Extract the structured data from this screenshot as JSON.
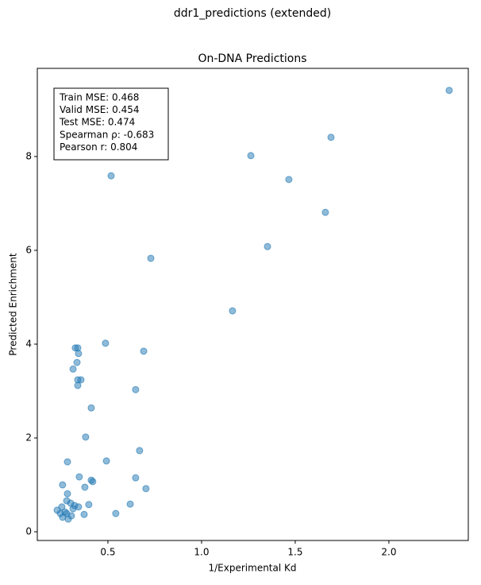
{
  "chart_data": {
    "type": "scatter",
    "suptitle": "ddr1_predictions (extended)",
    "title": "On-DNA Predictions",
    "xlabel": "1/Experimental Kd",
    "ylabel": "Predicted Enrichment",
    "annotation": [
      "Train MSE: 0.468",
      "Valid MSE: 0.454",
      "Test MSE: 0.474",
      "Spearman ρ: -0.683",
      "Pearson r: 0.804"
    ],
    "color": "#1f77b4",
    "x": [
      2.322,
      1.691,
      1.263,
      1.466,
      0.517,
      1.661,
      1.352,
      0.729,
      1.165,
      0.487,
      0.691,
      0.326,
      0.339,
      0.343,
      0.335,
      0.314,
      0.339,
      0.356,
      0.339,
      0.648,
      0.411,
      0.381,
      0.669,
      0.492,
      0.284,
      0.347,
      0.648,
      0.411,
      0.419,
      0.258,
      0.377,
      0.703,
      0.284,
      0.28,
      0.301,
      0.322,
      0.398,
      0.619,
      0.343,
      0.314,
      0.254,
      0.229,
      0.246,
      0.271,
      0.28,
      0.373,
      0.542,
      0.305,
      0.258,
      0.288
    ],
    "values": [
      9.41,
      8.41,
      8.02,
      7.51,
      7.59,
      6.81,
      6.08,
      5.83,
      4.71,
      4.02,
      3.85,
      3.92,
      3.92,
      3.8,
      3.61,
      3.47,
      3.24,
      3.24,
      3.12,
      3.03,
      2.64,
      2.02,
      1.73,
      1.51,
      1.49,
      1.17,
      1.15,
      1.1,
      1.07,
      1.0,
      0.95,
      0.92,
      0.81,
      0.66,
      0.61,
      0.56,
      0.58,
      0.59,
      0.53,
      0.49,
      0.53,
      0.46,
      0.39,
      0.42,
      0.39,
      0.37,
      0.39,
      0.34,
      0.31,
      0.27
    ],
    "xlim": [
      0.123,
      2.424
    ],
    "ylim": [
      -0.186,
      9.88
    ],
    "xticks": [
      0.5,
      {
        "value": 1,
        "label": "1.0"
      },
      1.5,
      {
        "value": 2,
        "label": "2.0"
      }
    ],
    "yticks": [
      0,
      2,
      4,
      6,
      8
    ]
  }
}
